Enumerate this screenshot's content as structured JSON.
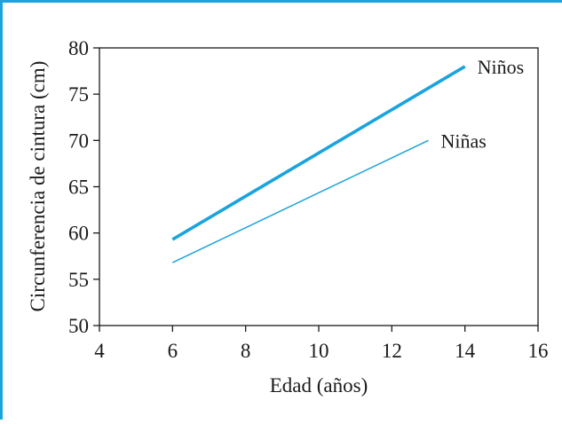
{
  "chart_data": {
    "type": "line",
    "title": "",
    "xlabel": "Edad (años)",
    "ylabel": "Circunferencia de cintura (cm)",
    "xlim": [
      4,
      16
    ],
    "ylim": [
      50,
      80
    ],
    "xticks": [
      4,
      6,
      8,
      10,
      12,
      14,
      16
    ],
    "yticks": [
      50,
      55,
      60,
      65,
      70,
      75,
      80
    ],
    "grid": false,
    "series": [
      {
        "name": "Niños",
        "x": [
          6,
          14
        ],
        "y": [
          59.3,
          78
        ],
        "color": "#1aa3dd",
        "line": "thick"
      },
      {
        "name": "Niñas",
        "x": [
          6,
          13
        ],
        "y": [
          56.8,
          70
        ],
        "color": "#1aa3dd",
        "line": "thin"
      }
    ],
    "frame_color": "#1aa3dd"
  }
}
